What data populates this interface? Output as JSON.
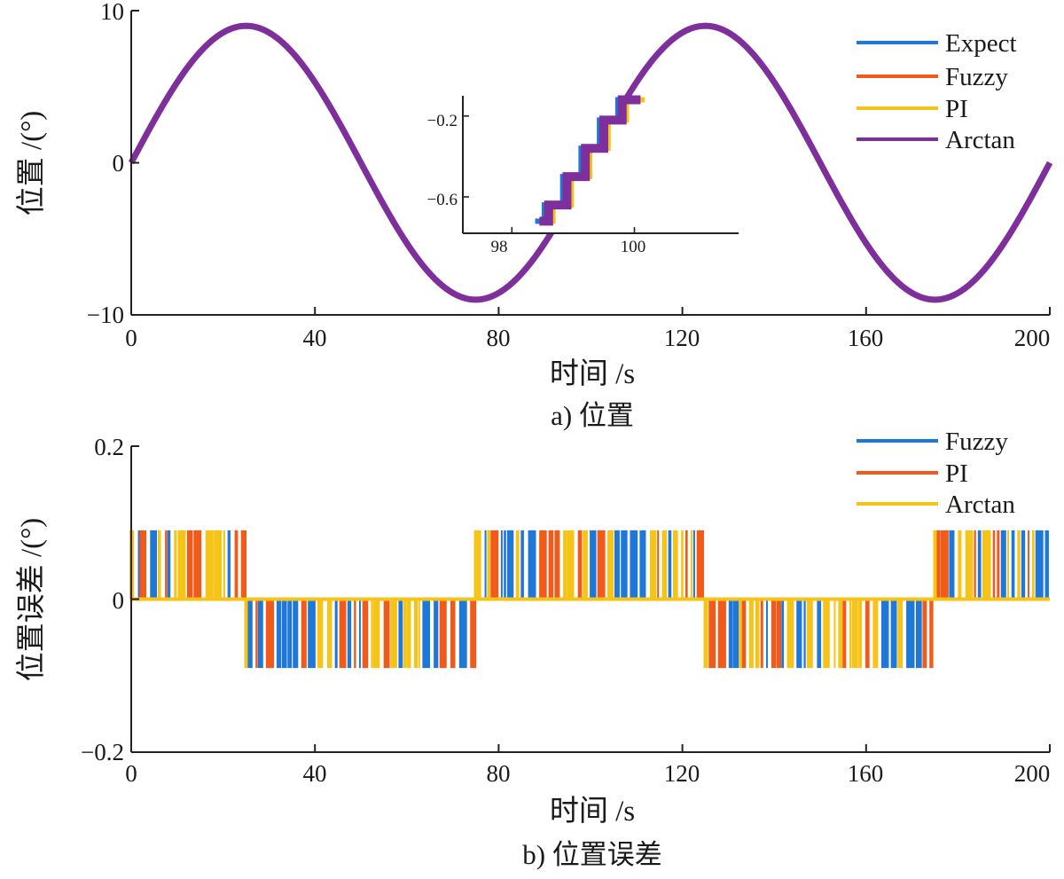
{
  "chart_data": [
    {
      "type": "line",
      "caption": "a)  位置",
      "xlabel": "时间 /s",
      "ylabel": "位置 /(°)",
      "xlim": [
        0,
        200
      ],
      "ylim": [
        -10,
        10
      ],
      "xticks": [
        "0",
        "40",
        "80",
        "120",
        "160",
        "200"
      ],
      "yticks": [
        "−10",
        "0",
        "10"
      ],
      "amplitude": 9,
      "period": 100,
      "legend_position": "top-right",
      "series": [
        {
          "name": "Expect",
          "color": "#1f77d8"
        },
        {
          "name": "Fuzzy",
          "color": "#f05a1a"
        },
        {
          "name": "PI",
          "color": "#f6c318"
        },
        {
          "name": "Arctan",
          "color": "#7e2f9c"
        }
      ],
      "inset": {
        "xlim": [
          97.2,
          101.7
        ],
        "ylim": [
          -0.78,
          -0.1
        ],
        "xticks": [
          "98",
          "100"
        ],
        "yticks": [
          "−0.6",
          "−0.2"
        ],
        "step_times": [
          98.6,
          98.9,
          99.2,
          99.5,
          99.8
        ],
        "step_levels": [
          -0.72,
          -0.64,
          -0.5,
          -0.36,
          -0.22,
          -0.12
        ]
      }
    },
    {
      "type": "line",
      "caption": "b)  位置误差",
      "xlabel": "时间 /s",
      "ylabel": "位置误差 /(°)",
      "xlim": [
        0,
        200
      ],
      "ylim": [
        -0.2,
        0.2
      ],
      "xticks": [
        "0",
        "40",
        "80",
        "120",
        "160",
        "200"
      ],
      "yticks": [
        "−0.2",
        "0",
        "0.2"
      ],
      "error_levels": [
        0.09,
        0,
        -0.09
      ],
      "legend_position": "top-right",
      "series": [
        {
          "name": "Fuzzy",
          "color": "#1f77d8"
        },
        {
          "name": "PI",
          "color": "#f05a1a"
        },
        {
          "name": "Arctan",
          "color": "#f6c318"
        }
      ]
    }
  ]
}
